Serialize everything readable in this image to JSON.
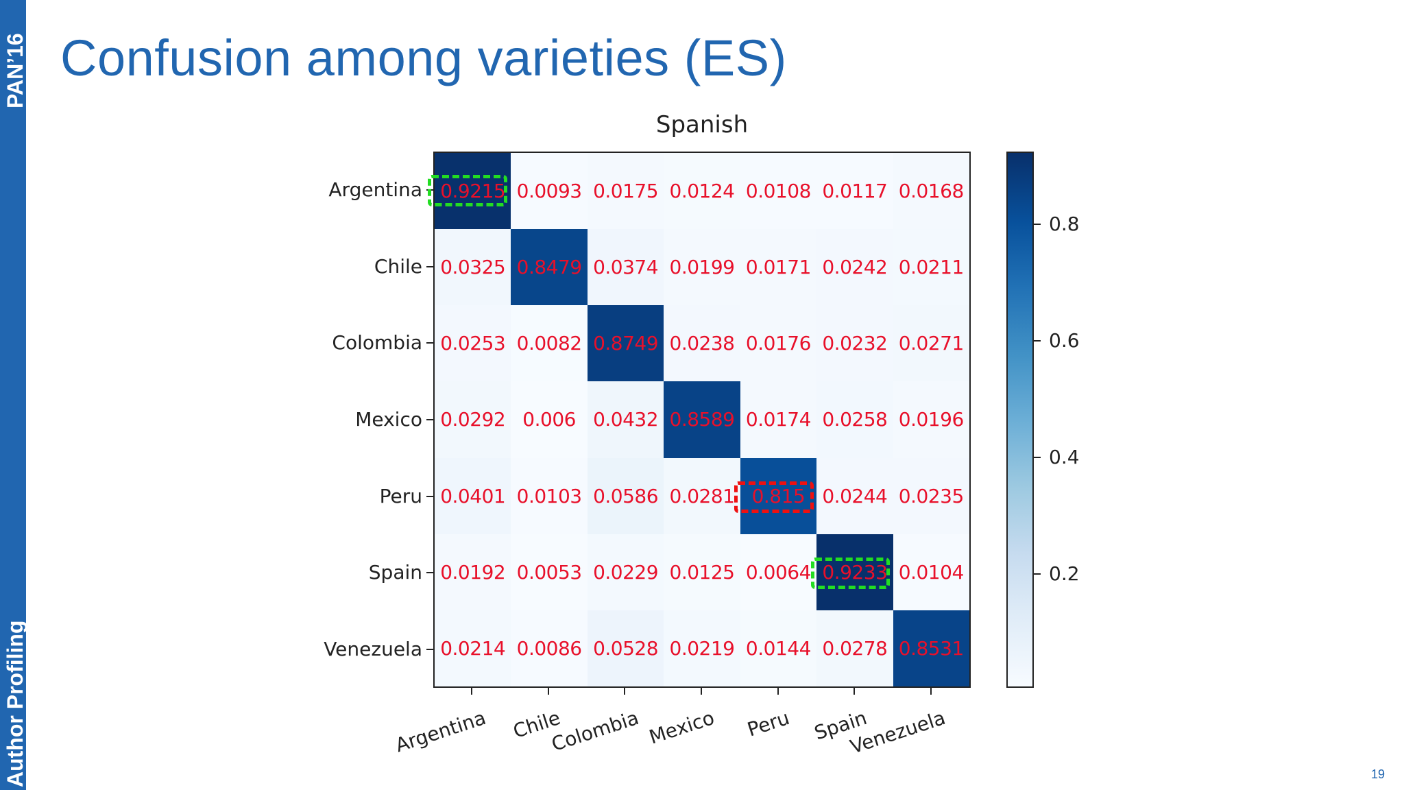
{
  "sidebar": {
    "top_label": "PAN’16",
    "bottom_label": "Author Profiling"
  },
  "slide": {
    "title": "Confusion among varieties (ES)",
    "page_number": "19"
  },
  "colors": {
    "brand_blue": "#2166b0",
    "cell_text": "#e8102a",
    "highlight_good": "#22dd22",
    "highlight_bad": "#ee1111"
  },
  "chart_data": {
    "type": "heatmap",
    "title": "Spanish",
    "xlabel": "",
    "ylabel": "",
    "categories": [
      "Argentina",
      "Chile",
      "Colombia",
      "Mexico",
      "Peru",
      "Spain",
      "Venezuela"
    ],
    "rows": [
      "Argentina",
      "Chile",
      "Colombia",
      "Mexico",
      "Peru",
      "Spain",
      "Venezuela"
    ],
    "values": [
      [
        "0.9215",
        "0.0093",
        "0.0175",
        "0.0124",
        "0.0108",
        "0.0117",
        "0.0168"
      ],
      [
        "0.0325",
        "0.8479",
        "0.0374",
        "0.0199",
        "0.0171",
        "0.0242",
        "0.0211"
      ],
      [
        "0.0253",
        "0.0082",
        "0.8749",
        "0.0238",
        "0.0176",
        "0.0232",
        "0.0271"
      ],
      [
        "0.0292",
        "0.006",
        "0.0432",
        "0.8589",
        "0.0174",
        "0.0258",
        "0.0196"
      ],
      [
        "0.0401",
        "0.0103",
        "0.0586",
        "0.0281",
        "0.815",
        "0.0244",
        "0.0235"
      ],
      [
        "0.0192",
        "0.0053",
        "0.0229",
        "0.0125",
        "0.0064",
        "0.9233",
        "0.0104"
      ],
      [
        "0.0214",
        "0.0086",
        "0.0528",
        "0.0219",
        "0.0144",
        "0.0278",
        "0.8531"
      ]
    ],
    "colormap": "Blues",
    "colorbar": {
      "ticks": [
        "0.8",
        "0.6",
        "0.4",
        "0.2"
      ],
      "range": [
        0.005,
        0.924
      ]
    },
    "annotations": [
      {
        "row": 0,
        "col": 0,
        "style": "green-dashed-box",
        "meaning": "highest accuracy"
      },
      {
        "row": 5,
        "col": 5,
        "style": "green-dashed-box",
        "meaning": "highest accuracy"
      },
      {
        "row": 4,
        "col": 4,
        "style": "red-dashed-box",
        "meaning": "lowest accuracy"
      }
    ]
  }
}
